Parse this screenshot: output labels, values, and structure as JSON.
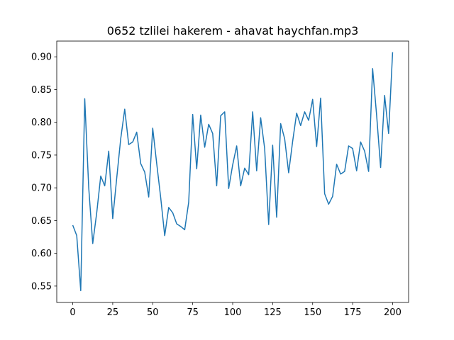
{
  "chart_data": {
    "type": "line",
    "title": "0652 tzlilei hakerem - ahavat haychfan.mp3",
    "color": "#1f77b4",
    "x": [
      0,
      2.5,
      5,
      7.5,
      10,
      12.5,
      15,
      17.5,
      20,
      22.5,
      25,
      27.5,
      30,
      32.5,
      35,
      37.5,
      40,
      42.5,
      45,
      47.5,
      50,
      52.5,
      55,
      57.5,
      60,
      62.5,
      65,
      67.5,
      70,
      72.5,
      75,
      77.5,
      80,
      82.5,
      85,
      87.5,
      90,
      92.5,
      95,
      97.5,
      100,
      102.5,
      105,
      107.5,
      110,
      112.5,
      115,
      117.5,
      120,
      122.5,
      125,
      127.5,
      130,
      132.5,
      135,
      137.5,
      140,
      142.5,
      145,
      147.5,
      150,
      152.5,
      155,
      157.5,
      160,
      162.5,
      165,
      167.5,
      170,
      172.5,
      175,
      177.5,
      180,
      182.5,
      185,
      187.5,
      190,
      192.5,
      195,
      197.5,
      200
    ],
    "values": [
      0.643,
      0.627,
      0.543,
      0.836,
      0.7,
      0.615,
      0.662,
      0.718,
      0.703,
      0.756,
      0.653,
      0.715,
      0.775,
      0.82,
      0.766,
      0.77,
      0.785,
      0.737,
      0.724,
      0.686,
      0.791,
      0.737,
      0.685,
      0.627,
      0.67,
      0.662,
      0.645,
      0.641,
      0.636,
      0.678,
      0.812,
      0.729,
      0.811,
      0.762,
      0.797,
      0.783,
      0.703,
      0.81,
      0.816,
      0.699,
      0.735,
      0.764,
      0.703,
      0.73,
      0.72,
      0.816,
      0.726,
      0.807,
      0.76,
      0.644,
      0.765,
      0.655,
      0.798,
      0.775,
      0.723,
      0.771,
      0.814,
      0.795,
      0.816,
      0.803,
      0.835,
      0.763,
      0.837,
      0.691,
      0.675,
      0.687,
      0.736,
      0.721,
      0.725,
      0.764,
      0.76,
      0.726,
      0.77,
      0.756,
      0.725,
      0.882,
      0.811,
      0.731,
      0.841,
      0.783,
      0.907
    ],
    "xlim": [
      -10,
      210
    ],
    "xticks": [
      0,
      25,
      50,
      75,
      100,
      125,
      150,
      175,
      200
    ],
    "ylim": [
      0.525,
      0.924
    ],
    "yticks": [
      0.55,
      {
        "value": 0.6,
        "label": "0.60"
      },
      0.65,
      {
        "value": 0.7,
        "label": "0.70"
      },
      0.75,
      {
        "value": 0.8,
        "label": "0.80"
      },
      0.85,
      {
        "value": 0.9,
        "label": "0.90"
      }
    ]
  }
}
